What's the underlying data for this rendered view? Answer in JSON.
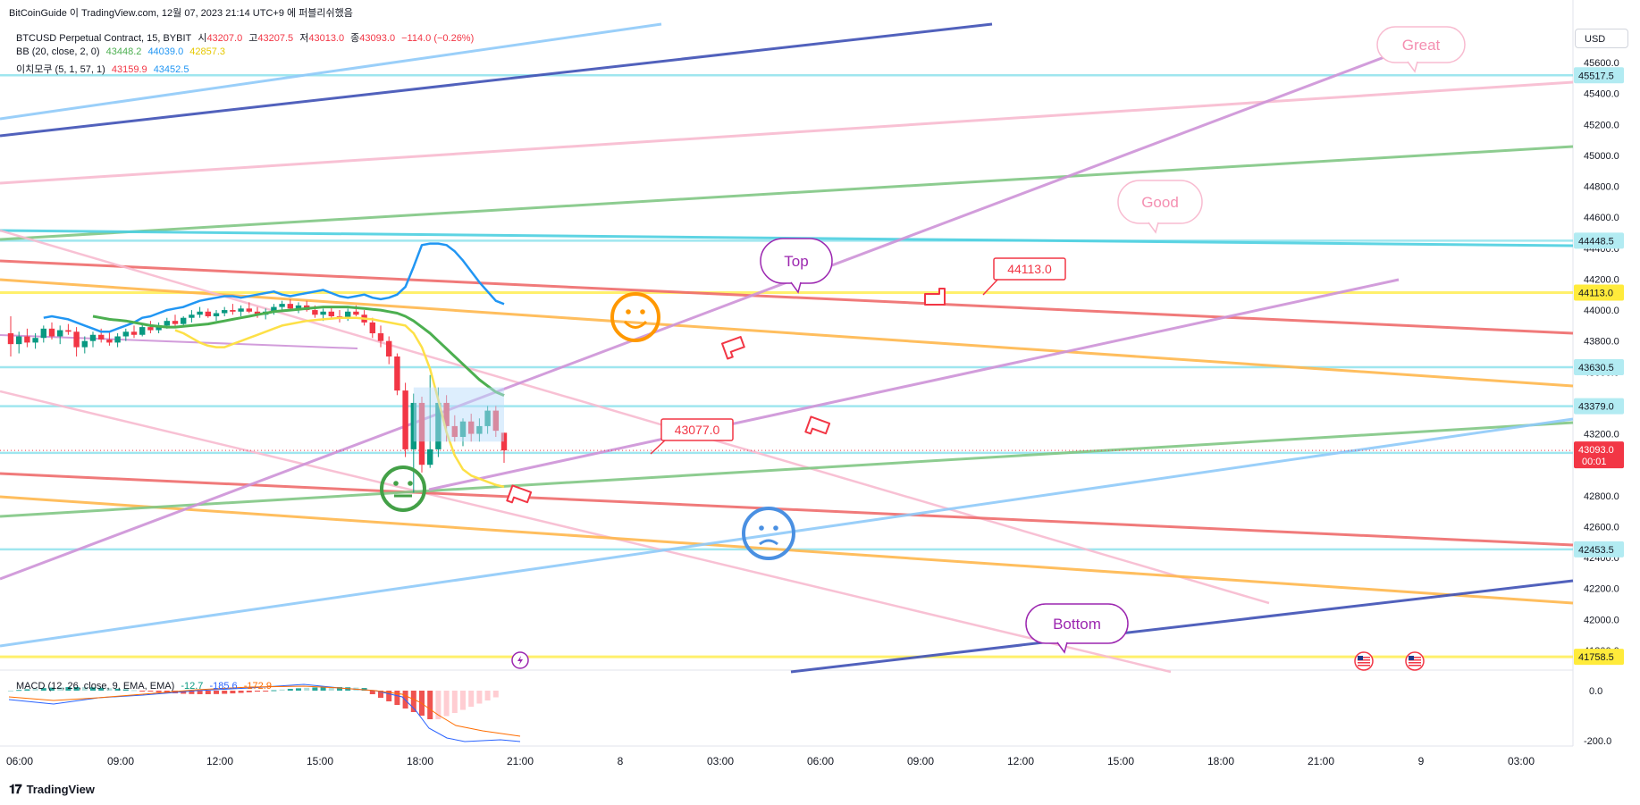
{
  "header": {
    "publisher": "BitCoinGuide 이 TradingView.com, 12월 07, 2023 21:14 UTC+9 에 퍼블리쉬했음"
  },
  "legend": {
    "symbol": "BTCUSD Perpetual Contract, 15, BYBIT",
    "open_label": "시",
    "open": "43207.0",
    "high_label": "고",
    "high": "43207.5",
    "low_label": "저",
    "low": "43013.0",
    "close_label": "종",
    "close": "43093.0",
    "change": "−114.0 (−0.26%)",
    "bb_label": "BB (20, close, 2, 0)",
    "bb_basis": "43448.2",
    "bb_upper": "44039.0",
    "bb_lower": "42857.3",
    "ichimoku_label": "이치모쿠 (5, 1, 57, 1)",
    "ichimoku_a": "43159.9",
    "ichimoku_b": "43452.5",
    "macd_label": "MACD (12, 26, close, 9, EMA, EMA)",
    "macd_v1": "-12.7",
    "macd_v2": "-185.6",
    "macd_v3": "-172.9"
  },
  "currency_button": "USD",
  "footer_brand": "TradingView",
  "colors": {
    "up": "#089981",
    "down": "#f23645",
    "bb_basis": "#4caf50",
    "bb_upper": "#2196f3",
    "bb_lower": "#ffeb3b",
    "pink": "#f48fb1",
    "purple": "#9c27b0",
    "yellow_line": "#ffeb3b",
    "cyan": "#80deea"
  },
  "chart_data": {
    "type": "candlestick",
    "title": "BTCUSD Perpetual Contract, 15, BYBIT",
    "y_ticks": [
      "45600.0",
      "45400.0",
      "45200.0",
      "45000.0",
      "44800.0",
      "44600.0",
      "44400.0",
      "44200.0",
      "44000.0",
      "43800.0",
      "43600.0",
      "43400.0",
      "43200.0",
      "43000.0",
      "42800.0",
      "42600.0",
      "42400.0",
      "42200.0",
      "42000.0",
      "41800.0"
    ],
    "price_labels": [
      {
        "value": "45517.5",
        "kind": "cyan"
      },
      {
        "value": "44448.5",
        "kind": "cyan"
      },
      {
        "value": "44113.0",
        "kind": "yellow"
      },
      {
        "value": "43630.5",
        "kind": "cyan"
      },
      {
        "value": "43379.0",
        "kind": "cyan"
      },
      {
        "value": "43077.0",
        "kind": "cyan"
      },
      {
        "value": "42453.5",
        "kind": "cyan"
      },
      {
        "value": "41758.5",
        "kind": "yellow"
      }
    ],
    "last_price": {
      "value": "43093.0",
      "countdown": "00:01"
    },
    "x_ticks": [
      "06:00",
      "09:00",
      "12:00",
      "15:00",
      "18:00",
      "21:00",
      "8",
      "03:00",
      "06:00",
      "09:00",
      "12:00",
      "15:00",
      "18:00",
      "21:00",
      "9",
      "03:00"
    ],
    "macd_ticks": [
      "0.0",
      "-200.0"
    ],
    "candles": [
      {
        "t": "06:00",
        "o": 43850,
        "h": 43960,
        "l": 43700,
        "c": 43780
      },
      {
        "t": "06:15",
        "o": 43780,
        "h": 43860,
        "l": 43720,
        "c": 43830
      },
      {
        "t": "06:30",
        "o": 43830,
        "h": 43880,
        "l": 43760,
        "c": 43790
      },
      {
        "t": "06:45",
        "o": 43790,
        "h": 43850,
        "l": 43750,
        "c": 43820
      },
      {
        "t": "07:00",
        "o": 43820,
        "h": 43900,
        "l": 43790,
        "c": 43880
      },
      {
        "t": "07:15",
        "o": 43880,
        "h": 43920,
        "l": 43810,
        "c": 43830
      },
      {
        "t": "07:30",
        "o": 43830,
        "h": 43900,
        "l": 43780,
        "c": 43870
      },
      {
        "t": "07:45",
        "o": 43870,
        "h": 43910,
        "l": 43840,
        "c": 43860
      },
      {
        "t": "08:00",
        "o": 43860,
        "h": 43890,
        "l": 43700,
        "c": 43760
      },
      {
        "t": "08:15",
        "o": 43760,
        "h": 43830,
        "l": 43720,
        "c": 43800
      },
      {
        "t": "08:30",
        "o": 43800,
        "h": 43860,
        "l": 43760,
        "c": 43840
      },
      {
        "t": "08:45",
        "o": 43840,
        "h": 43880,
        "l": 43790,
        "c": 43810
      },
      {
        "t": "09:00",
        "o": 43810,
        "h": 43860,
        "l": 43770,
        "c": 43790
      },
      {
        "t": "09:15",
        "o": 43790,
        "h": 43850,
        "l": 43760,
        "c": 43830
      },
      {
        "t": "09:30",
        "o": 43830,
        "h": 43880,
        "l": 43800,
        "c": 43860
      },
      {
        "t": "09:45",
        "o": 43860,
        "h": 43900,
        "l": 43820,
        "c": 43840
      },
      {
        "t": "10:00",
        "o": 43840,
        "h": 43910,
        "l": 43830,
        "c": 43890
      },
      {
        "t": "10:15",
        "o": 43890,
        "h": 43930,
        "l": 43850,
        "c": 43870
      },
      {
        "t": "10:30",
        "o": 43870,
        "h": 43920,
        "l": 43850,
        "c": 43900
      },
      {
        "t": "10:45",
        "o": 43900,
        "h": 43950,
        "l": 43880,
        "c": 43930
      },
      {
        "t": "11:00",
        "o": 43930,
        "h": 43970,
        "l": 43890,
        "c": 43910
      },
      {
        "t": "11:15",
        "o": 43910,
        "h": 43960,
        "l": 43900,
        "c": 43950
      },
      {
        "t": "11:30",
        "o": 43950,
        "h": 44000,
        "l": 43920,
        "c": 43970
      },
      {
        "t": "11:45",
        "o": 43970,
        "h": 44020,
        "l": 43950,
        "c": 43990
      },
      {
        "t": "12:00",
        "o": 43990,
        "h": 44010,
        "l": 43950,
        "c": 43960
      },
      {
        "t": "12:15",
        "o": 43960,
        "h": 44000,
        "l": 43930,
        "c": 43980
      },
      {
        "t": "12:30",
        "o": 43980,
        "h": 44020,
        "l": 43960,
        "c": 44000
      },
      {
        "t": "12:45",
        "o": 44000,
        "h": 44040,
        "l": 43970,
        "c": 43990
      },
      {
        "t": "13:00",
        "o": 43990,
        "h": 44030,
        "l": 43960,
        "c": 44010
      },
      {
        "t": "13:15",
        "o": 44010,
        "h": 44050,
        "l": 43980,
        "c": 43990
      },
      {
        "t": "13:30",
        "o": 43990,
        "h": 44020,
        "l": 43950,
        "c": 43970
      },
      {
        "t": "13:45",
        "o": 43970,
        "h": 44010,
        "l": 43940,
        "c": 43990
      },
      {
        "t": "14:00",
        "o": 43990,
        "h": 44040,
        "l": 43970,
        "c": 44020
      },
      {
        "t": "14:15",
        "o": 44020,
        "h": 44060,
        "l": 43990,
        "c": 44040
      },
      {
        "t": "14:30",
        "o": 44040,
        "h": 44070,
        "l": 44000,
        "c": 44010
      },
      {
        "t": "14:45",
        "o": 44010,
        "h": 44050,
        "l": 43980,
        "c": 44030
      },
      {
        "t": "15:00",
        "o": 44030,
        "h": 44060,
        "l": 43990,
        "c": 44000
      },
      {
        "t": "15:15",
        "o": 44000,
        "h": 44030,
        "l": 43950,
        "c": 43970
      },
      {
        "t": "15:30",
        "o": 43970,
        "h": 44010,
        "l": 43930,
        "c": 43990
      },
      {
        "t": "15:45",
        "o": 43990,
        "h": 44020,
        "l": 43940,
        "c": 43960
      },
      {
        "t": "16:00",
        "o": 43960,
        "h": 44000,
        "l": 43920,
        "c": 43950
      },
      {
        "t": "16:15",
        "o": 43950,
        "h": 44010,
        "l": 43930,
        "c": 43990
      },
      {
        "t": "16:30",
        "o": 43990,
        "h": 44030,
        "l": 43960,
        "c": 43970
      },
      {
        "t": "16:45",
        "o": 43970,
        "h": 44000,
        "l": 43900,
        "c": 43920
      },
      {
        "t": "17:00",
        "o": 43920,
        "h": 43950,
        "l": 43820,
        "c": 43850
      },
      {
        "t": "17:15",
        "o": 43850,
        "h": 43900,
        "l": 43760,
        "c": 43800
      },
      {
        "t": "17:30",
        "o": 43800,
        "h": 43830,
        "l": 43650,
        "c": 43700
      },
      {
        "t": "17:45",
        "o": 43700,
        "h": 43720,
        "l": 43450,
        "c": 43480
      },
      {
        "t": "18:00",
        "o": 43480,
        "h": 43530,
        "l": 43050,
        "c": 43100
      },
      {
        "t": "18:15",
        "o": 43100,
        "h": 43460,
        "l": 42820,
        "c": 43400
      },
      {
        "t": "18:30",
        "o": 43400,
        "h": 43440,
        "l": 42950,
        "c": 43000
      },
      {
        "t": "18:45",
        "o": 43000,
        "h": 43580,
        "l": 42980,
        "c": 43100
      },
      {
        "t": "19:00",
        "o": 43100,
        "h": 43500,
        "l": 43050,
        "c": 43400
      },
      {
        "t": "19:15",
        "o": 43400,
        "h": 43450,
        "l": 43150,
        "c": 43250
      },
      {
        "t": "19:30",
        "o": 43250,
        "h": 43320,
        "l": 43150,
        "c": 43180
      },
      {
        "t": "19:45",
        "o": 43180,
        "h": 43300,
        "l": 43120,
        "c": 43280
      },
      {
        "t": "20:00",
        "o": 43280,
        "h": 43330,
        "l": 43150,
        "c": 43200
      },
      {
        "t": "20:15",
        "o": 43200,
        "h": 43300,
        "l": 43150,
        "c": 43250
      },
      {
        "t": "20:30",
        "o": 43250,
        "h": 43380,
        "l": 43200,
        "c": 43350
      },
      {
        "t": "20:45",
        "o": 43350,
        "h": 43380,
        "l": 43180,
        "c": 43220
      },
      {
        "t": "21:00",
        "o": 43207,
        "h": 43207.5,
        "l": 43013,
        "c": 43093
      }
    ],
    "bb_upper": [
      43950,
      43960,
      43950,
      43940,
      43920,
      43900,
      43880,
      43860,
      43860,
      43880,
      43900,
      43920,
      43950,
      43960,
      43980,
      44000,
      44010,
      44020,
      44040,
      44060,
      44070,
      44080,
      44090,
      44090,
      44080,
      44090,
      44100,
      44110,
      44120,
      44100,
      44090,
      44100,
      44110,
      44120,
      44130,
      44110,
      44090,
      44080,
      44090,
      44100,
      44080,
      44070,
      44080,
      44100,
      44150,
      44280,
      44420,
      44430,
      44430,
      44420,
      44380,
      44320,
      44250,
      44180,
      44120,
      44060,
      44039
    ],
    "bb_basis": [
      43960,
      43950,
      43940,
      43935,
      43930,
      43920,
      43910,
      43900,
      43895,
      43890,
      43890,
      43895,
      43900,
      43905,
      43910,
      43920,
      43930,
      43940,
      43950,
      43960,
      43970,
      43980,
      43990,
      43995,
      44000,
      44005,
      44010,
      44015,
      44020,
      44020,
      44020,
      44020,
      44015,
      44010,
      44005,
      44000,
      43990,
      43980,
      43960,
      43930,
      43890,
      43850,
      43800,
      43750,
      43700,
      43650,
      43600,
      43550,
      43510,
      43470,
      43448.2
    ],
    "bb_lower": [
      43870,
      43850,
      43820,
      43790,
      43770,
      43760,
      43760,
      43780,
      43800,
      43820,
      43840,
      43860,
      43880,
      43900,
      43910,
      43920,
      43930,
      43935,
      43940,
      43945,
      43950,
      43950,
      43950,
      43945,
      43940,
      43930,
      43920,
      43910,
      43900,
      43850,
      43760,
      43620,
      43420,
      43210,
      43060,
      42970,
      42930,
      42910,
      42890,
      42870,
      42857.3
    ]
  },
  "annotations": {
    "great": "Great",
    "good": "Good",
    "top": "Top",
    "bottom": "Bottom",
    "price_tag_1": "44113.0",
    "price_tag_2": "43077.0"
  }
}
